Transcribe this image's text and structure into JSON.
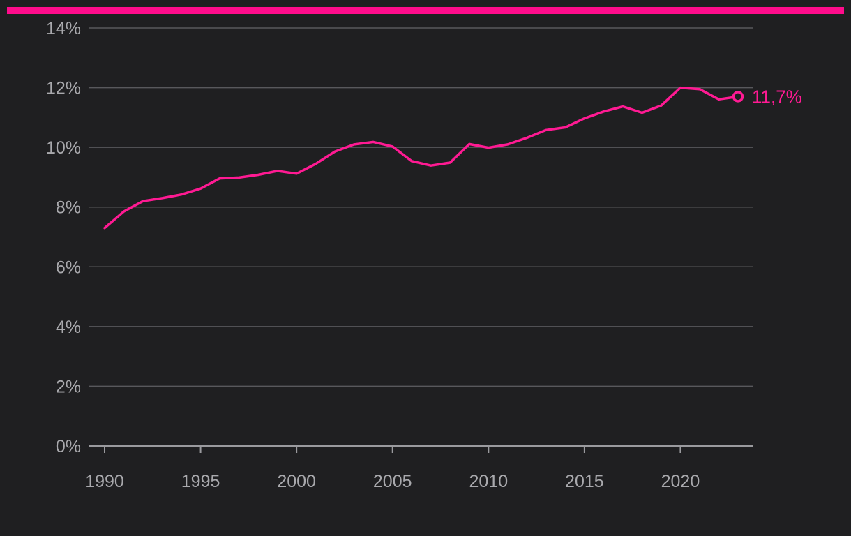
{
  "colors": {
    "background": "#1f1f21",
    "accent": "#ff0c8c",
    "series": "#ff1a93",
    "grid": "#58585c",
    "axis": "#9a9a9e",
    "tick_text": "#a9a9ad"
  },
  "chart_data": {
    "type": "line",
    "title": "",
    "xlabel": "",
    "ylabel": "",
    "xlim": [
      1989.2,
      2023.8
    ],
    "ylim": [
      0,
      14
    ],
    "grid": true,
    "x_ticks": [
      1990,
      1995,
      2000,
      2005,
      2010,
      2015,
      2020
    ],
    "x_tick_labels": [
      "1990",
      "1995",
      "2000",
      "2005",
      "2010",
      "2015",
      "2020"
    ],
    "y_ticks": [
      0,
      2,
      4,
      6,
      8,
      10,
      12,
      14
    ],
    "y_tick_labels": [
      "0%",
      "2%",
      "4%",
      "6%",
      "8%",
      "10%",
      "12%",
      "14%"
    ],
    "series": [
      {
        "x": [
          1990,
          1991,
          1992,
          1993,
          1994,
          1995,
          1996,
          1997,
          1998,
          1999,
          2000,
          2001,
          2002,
          2003,
          2004,
          2005,
          2006,
          2007,
          2008,
          2009,
          2010,
          2011,
          2012,
          2013,
          2014,
          2015,
          2016,
          2017,
          2018,
          2019,
          2020,
          2021,
          2022,
          2023
        ],
        "values": [
          7.3,
          7.85,
          8.2,
          8.3,
          8.42,
          8.62,
          8.96,
          8.99,
          9.08,
          9.21,
          9.12,
          9.45,
          9.86,
          10.1,
          10.18,
          10.03,
          9.54,
          9.39,
          9.49,
          10.11,
          9.99,
          10.1,
          10.32,
          10.58,
          10.67,
          10.97,
          11.2,
          11.37,
          11.16,
          11.4,
          12.0,
          11.95,
          11.61,
          11.7
        ]
      }
    ],
    "end_label": "11,7%"
  }
}
